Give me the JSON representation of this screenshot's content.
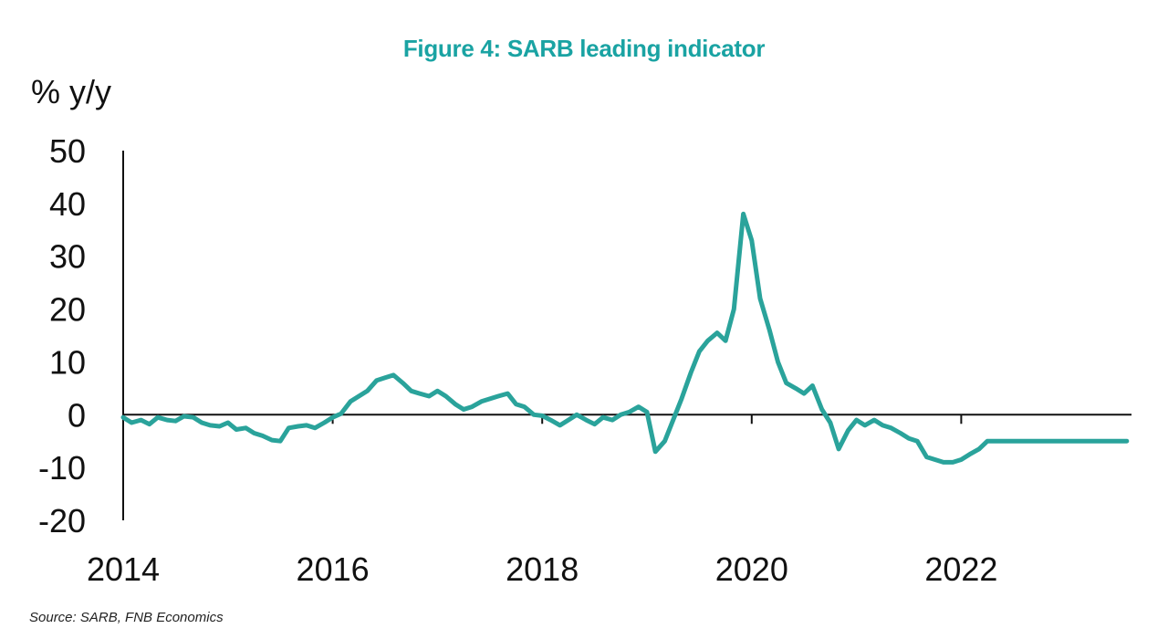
{
  "chart_data": {
    "type": "line",
    "title": "Figure 4: SARB leading indicator",
    "ylabel": "% y/y",
    "xlabel": "",
    "source": "Source: SARB, FNB Economics",
    "ylim": [
      -20,
      50
    ],
    "xlim": [
      2014.0,
      2023.8
    ],
    "yticks": [
      "50",
      "40",
      "30",
      "20",
      "10",
      "0",
      "-10",
      "-20"
    ],
    "xticks": [
      "2014",
      "2016",
      "2018",
      "2020",
      "2022"
    ],
    "color": "#2aa39b",
    "grid": false,
    "series": [
      {
        "x": [
          2014.0,
          2014.08,
          2014.17,
          2014.25,
          2014.33,
          2014.42,
          2014.5,
          2014.58,
          2014.67,
          2014.75,
          2014.83,
          2014.92,
          2015.0,
          2015.08,
          2015.17,
          2015.25,
          2015.33,
          2015.42,
          2015.5,
          2015.58,
          2015.67,
          2015.75,
          2015.83,
          2015.92,
          2016.0,
          2016.08,
          2016.17,
          2016.25,
          2016.33,
          2016.42,
          2016.5,
          2016.58,
          2016.67,
          2016.75,
          2016.83,
          2016.92,
          2017.0,
          2017.08,
          2017.17,
          2017.25,
          2017.33,
          2017.42,
          2017.5,
          2017.58,
          2017.67,
          2017.75,
          2017.83,
          2017.92,
          2018.0,
          2018.08,
          2018.17,
          2018.25,
          2018.33,
          2018.42,
          2018.5,
          2018.58,
          2018.67,
          2018.75,
          2018.83,
          2018.92,
          2019.0,
          2019.08,
          2019.17,
          2019.25,
          2019.33,
          2019.42,
          2019.5,
          2019.58,
          2019.67,
          2019.75,
          2019.83,
          2019.92,
          2020.0,
          2020.08,
          2020.17,
          2020.25,
          2020.33,
          2020.42,
          2020.5,
          2020.58,
          2020.67,
          2020.75,
          2020.83,
          2020.92,
          2021.0,
          2021.08,
          2021.17,
          2021.25,
          2021.33,
          2021.42,
          2021.5,
          2021.58,
          2021.67,
          2021.75,
          2021.83,
          2021.92,
          2022.0,
          2022.08,
          2022.17,
          2022.25,
          2022.33,
          2022.42,
          2022.5,
          2022.58,
          2022.67,
          2022.75,
          2022.83,
          2022.92,
          2023.0,
          2023.08,
          2023.17,
          2023.25,
          2023.33,
          2023.42,
          2023.5,
          2023.58
        ],
        "values": [
          -0.5,
          -1.5,
          -1.0,
          -1.8,
          -0.5,
          -1.0,
          -1.2,
          -0.3,
          -0.5,
          -1.5,
          -2.0,
          -2.2,
          -1.5,
          -2.8,
          -2.5,
          -3.5,
          -4.0,
          -4.8,
          -5.0,
          -2.5,
          -2.2,
          -2.0,
          -2.5,
          -1.5,
          -0.5,
          0.2,
          2.5,
          3.5,
          4.5,
          6.5,
          7.0,
          7.5,
          6.0,
          4.5,
          4.0,
          3.5,
          4.5,
          3.5,
          2.0,
          1.0,
          1.5,
          2.5,
          3.0,
          3.5,
          4.0,
          2.0,
          1.5,
          0.0,
          -0.2,
          -1.0,
          -2.0,
          -1.0,
          0.0,
          -1.0,
          -1.8,
          -0.5,
          -1.0,
          0.0,
          0.5,
          1.5,
          0.5,
          -7.0,
          -5.0,
          -1.0,
          3.0,
          8.0,
          12.0,
          14.0,
          15.5,
          14.0,
          20.0,
          38.0,
          33.0,
          22.0,
          16.0,
          10.0,
          6.0,
          5.0,
          4.0,
          5.5,
          1.0,
          -1.5,
          -6.5,
          -3.0,
          -1.0,
          -2.0,
          -1.0,
          -2.0,
          -2.5,
          -3.5,
          -4.5,
          -5.0,
          -8.0,
          -8.5,
          -9.0,
          -9.0,
          -8.5,
          -7.5,
          -6.5,
          -5.0,
          -5.0,
          -5.0,
          -5.0,
          -5.0,
          -5.0,
          -5.0,
          -5.0,
          -5.0,
          -5.0,
          -5.0,
          -5.0,
          -5.0,
          -5.0,
          -5.0,
          -5.0,
          -5.0
        ]
      }
    ]
  }
}
